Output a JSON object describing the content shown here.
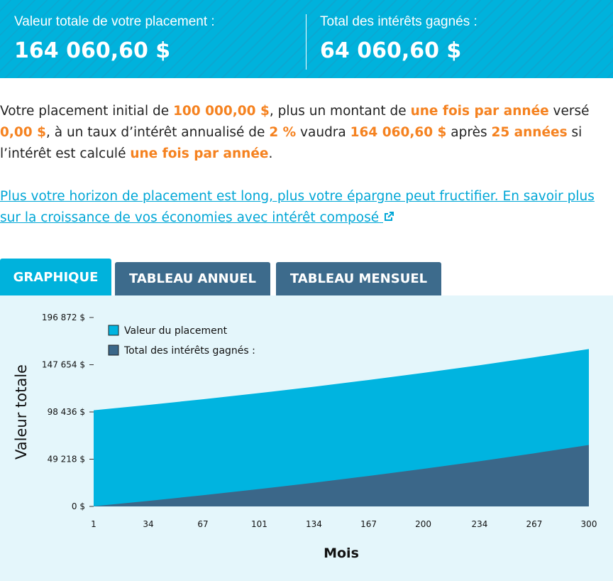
{
  "header": {
    "stats": [
      {
        "label": "Valeur totale de votre placement :",
        "value": "164 060,60 $"
      },
      {
        "label": "Total des intérêts gagnés :",
        "value": "64 060,60 $"
      }
    ]
  },
  "intro": [
    "Votre placement initial de ",
    "100 000,00 $",
    ", plus un montant de ",
    "une fois par année",
    " versé ",
    "0,00 $",
    ", à un taux d’intérêt annualisé de ",
    "2 %",
    " vaudra ",
    "164 060,60 $",
    " après ",
    "25 années",
    " si l’intérêt est calculé ",
    "une fois par année",
    "."
  ],
  "link": "Plus votre horizon de placement est long, plus votre épargne peut fructifier. En savoir plus sur la croissance de vos économies avec intérêt composé",
  "tabs": [
    "GRAPHIQUE",
    "TABLEAU ANNUEL",
    "TABLEAU MENSUEL"
  ],
  "chart_data": {
    "type": "area",
    "xlabel": "Mois",
    "ylabel": "Valeur totale",
    "x": [
      1,
      34,
      67,
      101,
      134,
      167,
      200,
      234,
      267,
      300
    ],
    "series": [
      {
        "name": "Valeur du placement",
        "color": "#00b4e0",
        "values": [
          100165,
          105766,
          111685,
          118140,
          124745,
          131730,
          139100,
          147125,
          155370,
          164060.6
        ]
      },
      {
        "name": "Total des intérêts gagnés :",
        "color": "#3b6789",
        "values": [
          165,
          5766,
          11685,
          18140,
          24745,
          31730,
          39100,
          47125,
          55370,
          64060.6
        ]
      }
    ],
    "xlim": [
      1,
      300
    ],
    "xticks": [
      1,
      34,
      67,
      101,
      134,
      167,
      200,
      234,
      267,
      300
    ],
    "ylim": [
      0,
      196872
    ],
    "yticks": [
      {
        "value": 0,
        "label": "0 $"
      },
      {
        "value": 49218,
        "label": "49 218 $"
      },
      {
        "value": 98436,
        "label": "98 436 $"
      },
      {
        "value": 147654,
        "label": "147 654 $"
      },
      {
        "value": 196872,
        "label": "196 872 $"
      }
    ]
  }
}
